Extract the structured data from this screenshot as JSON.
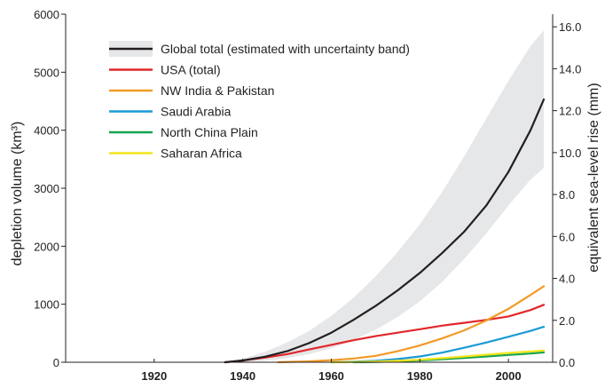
{
  "chart_data": {
    "type": "line",
    "title": "",
    "ylabel_left": "depletion volume (km³)",
    "ylabel_right": "equivalent sea-level rise (mm)",
    "xlabel": "",
    "xlim": [
      1900,
      2010
    ],
    "ylim_left": [
      0,
      6000
    ],
    "ylim_right": [
      0,
      16.6
    ],
    "x_ticks": [
      {
        "value": 1920,
        "label": "1920"
      },
      {
        "value": 1940,
        "label": "1940"
      },
      {
        "value": 1960,
        "label": "1960"
      },
      {
        "value": 1980,
        "label": "1980"
      },
      {
        "value": 2000,
        "label": "2000"
      }
    ],
    "y_ticks_left": [
      {
        "value": 0,
        "label": "0"
      },
      {
        "value": 1000,
        "label": "1000"
      },
      {
        "value": 2000,
        "label": "2000"
      },
      {
        "value": 3000,
        "label": "3000"
      },
      {
        "value": 4000,
        "label": "4000"
      },
      {
        "value": 5000,
        "label": "5000"
      },
      {
        "value": 6000,
        "label": "6000"
      }
    ],
    "y_ticks_right": [
      {
        "value": 0.0,
        "label": "0.0"
      },
      {
        "value": 2.0,
        "label": "2.0"
      },
      {
        "value": 4.0,
        "label": "4.0"
      },
      {
        "value": 6.0,
        "label": "6.0"
      },
      {
        "value": 8.0,
        "label": "8.0"
      },
      {
        "value": 10.0,
        "label": "10.0"
      },
      {
        "value": 12.0,
        "label": "12.0"
      },
      {
        "value": 14.0,
        "label": "14.0"
      },
      {
        "value": 16.0,
        "label": "16.0"
      }
    ],
    "grid": false,
    "legend_position": "top-left",
    "uncertainty_band": {
      "color": "#e6e7e8",
      "x": [
        1936,
        1940,
        1945,
        1950,
        1955,
        1960,
        1965,
        1970,
        1975,
        1980,
        1985,
        1990,
        1995,
        2000,
        2005,
        2008
      ],
      "lower": [
        0,
        5,
        25,
        70,
        140,
        240,
        380,
        560,
        780,
        1050,
        1380,
        1780,
        2220,
        2700,
        3150,
        3350
      ],
      "upper": [
        0,
        60,
        180,
        340,
        540,
        800,
        1110,
        1480,
        1900,
        2380,
        2930,
        3550,
        4200,
        4850,
        5450,
        5720
      ]
    },
    "series": [
      {
        "name": "Global total (estimated with uncertainty band)",
        "color": "#231f20",
        "x": [
          1936,
          1940,
          1945,
          1950,
          1955,
          1960,
          1965,
          1970,
          1975,
          1980,
          1985,
          1990,
          1995,
          2000,
          2005,
          2008
        ],
        "values": [
          0,
          30,
          95,
          190,
          330,
          510,
          730,
          970,
          1240,
          1540,
          1880,
          2250,
          2700,
          3280,
          4000,
          4530
        ]
      },
      {
        "name": "USA (total)",
        "color": "#e2272b",
        "x": [
          1936,
          1940,
          1945,
          1950,
          1955,
          1960,
          1965,
          1970,
          1975,
          1980,
          1985,
          1990,
          1995,
          2000,
          2005,
          2008
        ],
        "values": [
          0,
          30,
          80,
          140,
          220,
          300,
          380,
          450,
          510,
          570,
          630,
          680,
          730,
          790,
          900,
          990
        ]
      },
      {
        "name": "NW India & Pakistan",
        "color": "#f39a25",
        "x": [
          1948,
          1955,
          1960,
          1965,
          1970,
          1975,
          1980,
          1985,
          1990,
          1995,
          2000,
          2005,
          2008
        ],
        "values": [
          0,
          15,
          35,
          65,
          110,
          190,
          290,
          410,
          550,
          720,
          920,
          1160,
          1310
        ]
      },
      {
        "name": "Saudi Arabia",
        "color": "#1b9ad6",
        "x": [
          1960,
          1965,
          1970,
          1975,
          1980,
          1985,
          1990,
          1995,
          2000,
          2005,
          2008
        ],
        "values": [
          0,
          10,
          25,
          55,
          100,
          165,
          250,
          340,
          440,
          540,
          610
        ]
      },
      {
        "name": "North China Plain",
        "color": "#17a250",
        "x": [
          1965,
          1970,
          1975,
          1980,
          1985,
          1990,
          1995,
          2000,
          2005,
          2008
        ],
        "values": [
          0,
          5,
          15,
          30,
          50,
          75,
          100,
          125,
          150,
          170
        ]
      },
      {
        "name": "Saharan Africa",
        "color": "#f2e51c",
        "x": [
          1960,
          1965,
          1970,
          1975,
          1980,
          1985,
          1990,
          1995,
          2000,
          2005,
          2008
        ],
        "values": [
          0,
          5,
          12,
          25,
          45,
          70,
          100,
          130,
          160,
          185,
          200
        ]
      }
    ]
  }
}
